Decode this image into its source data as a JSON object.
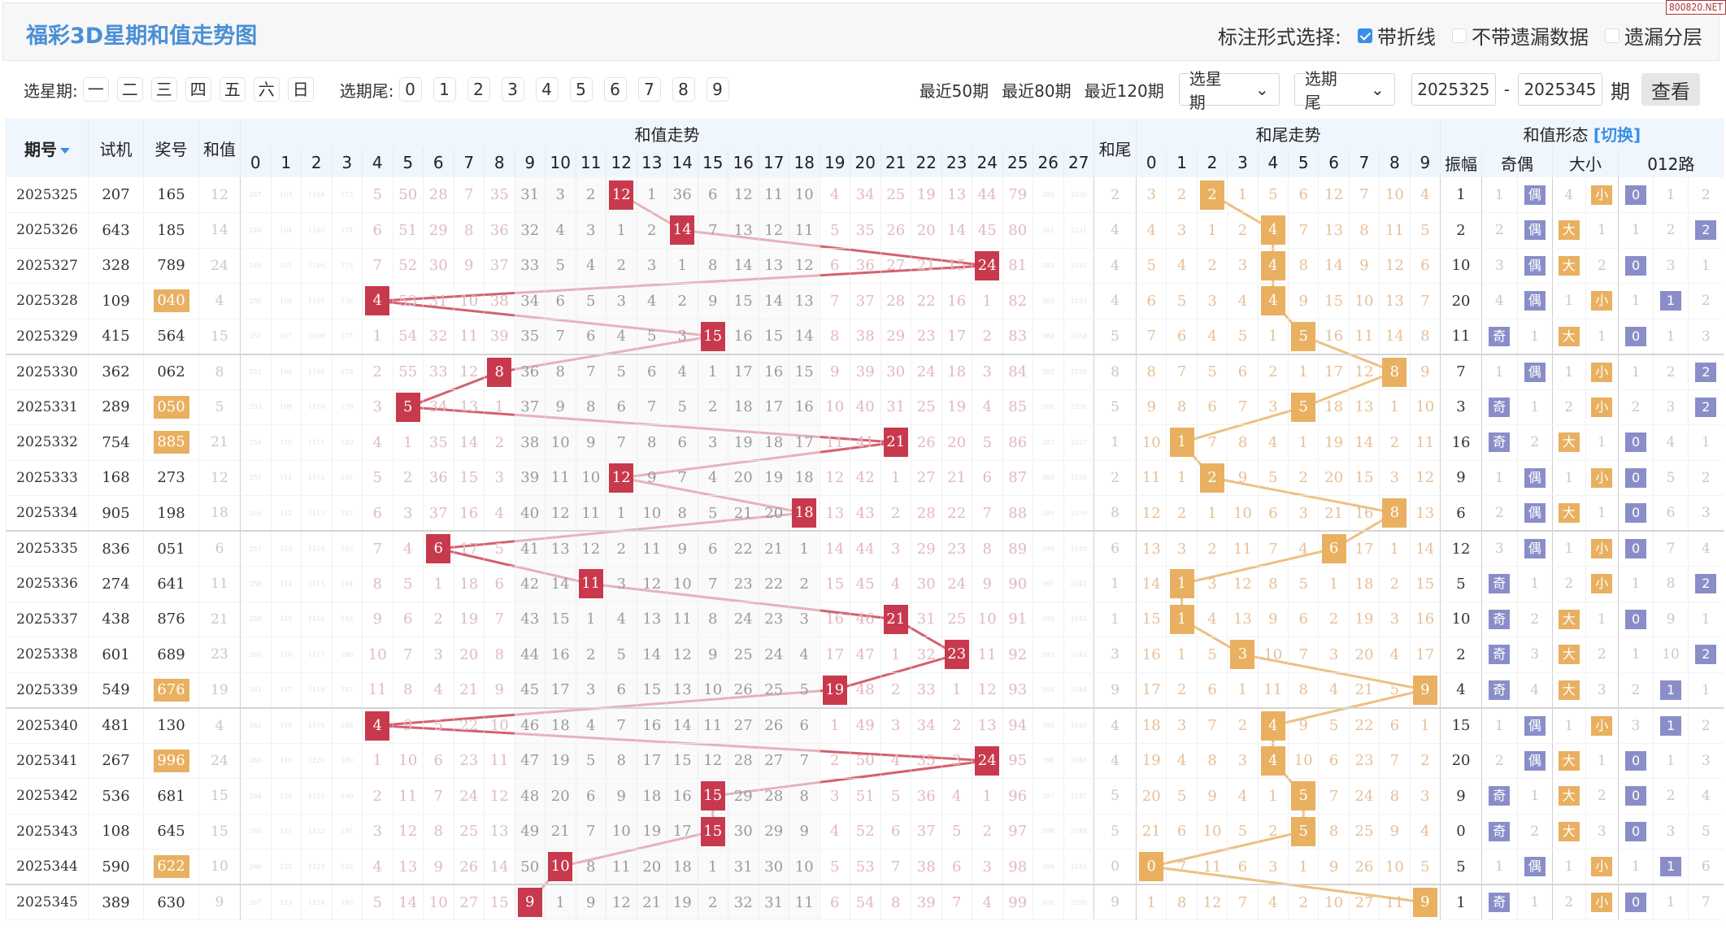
{
  "header": {
    "title": "福彩3D星期和值走势图",
    "options_label": "标注形式选择:",
    "options": [
      {
        "label": "带折线",
        "checked": true
      },
      {
        "label": "不带遗漏数据",
        "checked": false
      },
      {
        "label": "遗漏分层",
        "checked": false
      }
    ],
    "watermark": "800820.NET"
  },
  "filters": {
    "weekday_label": "选星期:",
    "weekdays": [
      "一",
      "二",
      "三",
      "四",
      "五",
      "六",
      "日"
    ],
    "tail_label": "选期尾:",
    "tails": [
      "0",
      "1",
      "2",
      "3",
      "4",
      "5",
      "6",
      "7",
      "8",
      "9"
    ],
    "recent": [
      "最近50期",
      "最近80期",
      "最近120期"
    ],
    "weekday_select": "选星期",
    "tail_select": "选期尾",
    "from": "2025325",
    "dash": "-",
    "to": "2025345",
    "unit": "期",
    "view": "查看"
  },
  "colors": {
    "sum_hit": "#c8394e",
    "tail_hit": "#e8b060",
    "form_purple": "#8a8ec8",
    "title": "#4a8fd6"
  },
  "table": {
    "headers": {
      "period": "期号",
      "test": "试机",
      "draw": "奖号",
      "sum": "和值",
      "sum_trend": "和值走势",
      "tail": "和尾",
      "tail_trend": "和尾走势",
      "form": "和值形态",
      "switch": "[切换]",
      "amplitude": "振幅",
      "odd_even": "奇偶",
      "big_small": "大小",
      "route": "012路"
    },
    "sum_numbers": [
      "0",
      "1",
      "2",
      "3",
      "4",
      "5",
      "6",
      "7",
      "8",
      "9",
      "10",
      "11",
      "12",
      "13",
      "14",
      "15",
      "16",
      "17",
      "18",
      "19",
      "20",
      "21",
      "22",
      "23",
      "24",
      "25",
      "26",
      "27"
    ],
    "tail_numbers": [
      "0",
      "1",
      "2",
      "3",
      "4",
      "5",
      "6",
      "7",
      "8",
      "9"
    ],
    "rows": [
      {
        "period": "2025325",
        "test": "207",
        "draw": "165",
        "group3": false,
        "sum": 12,
        "tail": 2,
        "amplitude": 1,
        "odd_even": [
          1,
          "偶"
        ],
        "big_small": [
          4,
          "小"
        ],
        "route": [
          "0",
          1,
          2
        ]
      },
      {
        "period": "2025326",
        "test": "643",
        "draw": "185",
        "group3": false,
        "sum": 14,
        "tail": 4,
        "amplitude": 2,
        "odd_even": [
          2,
          "偶"
        ],
        "big_small": [
          "大",
          1
        ],
        "route": [
          1,
          2,
          "2"
        ]
      },
      {
        "period": "2025327",
        "test": "328",
        "draw": "789",
        "group3": false,
        "sum": 24,
        "tail": 4,
        "amplitude": 10,
        "odd_even": [
          3,
          "偶"
        ],
        "big_small": [
          "大",
          2
        ],
        "route": [
          "0",
          3,
          1
        ]
      },
      {
        "period": "2025328",
        "test": "109",
        "draw": "040",
        "group3": true,
        "sum": 4,
        "tail": 4,
        "amplitude": 20,
        "odd_even": [
          4,
          "偶"
        ],
        "big_small": [
          1,
          "小"
        ],
        "route": [
          1,
          "1",
          2
        ]
      },
      {
        "period": "2025329",
        "test": "415",
        "draw": "564",
        "group3": false,
        "sum": 15,
        "tail": 5,
        "amplitude": 11,
        "odd_even": [
          "奇",
          1
        ],
        "big_small": [
          "大",
          1
        ],
        "route": [
          "0",
          1,
          3
        ]
      },
      {
        "period": "2025330",
        "test": "362",
        "draw": "062",
        "group3": false,
        "sum": 8,
        "tail": 8,
        "amplitude": 7,
        "odd_even": [
          1,
          "偶"
        ],
        "big_small": [
          1,
          "小"
        ],
        "route": [
          1,
          2,
          "2"
        ]
      },
      {
        "period": "2025331",
        "test": "289",
        "draw": "050",
        "group3": true,
        "sum": 5,
        "tail": 5,
        "amplitude": 3,
        "odd_even": [
          "奇",
          1
        ],
        "big_small": [
          2,
          "小"
        ],
        "route": [
          2,
          3,
          "2"
        ]
      },
      {
        "period": "2025332",
        "test": "754",
        "draw": "885",
        "group3": true,
        "sum": 21,
        "tail": 1,
        "amplitude": 16,
        "odd_even": [
          "奇",
          2
        ],
        "big_small": [
          "大",
          1
        ],
        "route": [
          "0",
          4,
          1
        ]
      },
      {
        "period": "2025333",
        "test": "168",
        "draw": "273",
        "group3": false,
        "sum": 12,
        "tail": 2,
        "amplitude": 9,
        "odd_even": [
          1,
          "偶"
        ],
        "big_small": [
          1,
          "小"
        ],
        "route": [
          "0",
          5,
          2
        ]
      },
      {
        "period": "2025334",
        "test": "905",
        "draw": "198",
        "group3": false,
        "sum": 18,
        "tail": 8,
        "amplitude": 6,
        "odd_even": [
          2,
          "偶"
        ],
        "big_small": [
          "大",
          1
        ],
        "route": [
          "0",
          6,
          3
        ]
      },
      {
        "period": "2025335",
        "test": "836",
        "draw": "051",
        "group3": false,
        "sum": 6,
        "tail": 6,
        "amplitude": 12,
        "odd_even": [
          3,
          "偶"
        ],
        "big_small": [
          1,
          "小"
        ],
        "route": [
          "0",
          7,
          4
        ]
      },
      {
        "period": "2025336",
        "test": "274",
        "draw": "641",
        "group3": false,
        "sum": 11,
        "tail": 1,
        "amplitude": 5,
        "odd_even": [
          "奇",
          1
        ],
        "big_small": [
          2,
          "小"
        ],
        "route": [
          1,
          8,
          "2"
        ]
      },
      {
        "period": "2025337",
        "test": "438",
        "draw": "876",
        "group3": false,
        "sum": 21,
        "tail": 1,
        "amplitude": 10,
        "odd_even": [
          "奇",
          2
        ],
        "big_small": [
          "大",
          1
        ],
        "route": [
          "0",
          9,
          1
        ]
      },
      {
        "period": "2025338",
        "test": "601",
        "draw": "689",
        "group3": false,
        "sum": 23,
        "tail": 3,
        "amplitude": 2,
        "odd_even": [
          "奇",
          3
        ],
        "big_small": [
          "大",
          2
        ],
        "route": [
          1,
          10,
          "2"
        ]
      },
      {
        "period": "2025339",
        "test": "549",
        "draw": "676",
        "group3": true,
        "sum": 19,
        "tail": 9,
        "amplitude": 4,
        "odd_even": [
          "奇",
          4
        ],
        "big_small": [
          "大",
          3
        ],
        "route": [
          2,
          "1",
          1
        ]
      },
      {
        "period": "2025340",
        "test": "481",
        "draw": "130",
        "group3": false,
        "sum": 4,
        "tail": 4,
        "amplitude": 15,
        "odd_even": [
          1,
          "偶"
        ],
        "big_small": [
          1,
          "小"
        ],
        "route": [
          3,
          "1",
          2
        ]
      },
      {
        "period": "2025341",
        "test": "267",
        "draw": "996",
        "group3": true,
        "sum": 24,
        "tail": 4,
        "amplitude": 20,
        "odd_even": [
          2,
          "偶"
        ],
        "big_small": [
          "大",
          1
        ],
        "route": [
          "0",
          1,
          3
        ]
      },
      {
        "period": "2025342",
        "test": "536",
        "draw": "681",
        "group3": false,
        "sum": 15,
        "tail": 5,
        "amplitude": 9,
        "odd_even": [
          "奇",
          1
        ],
        "big_small": [
          "大",
          2
        ],
        "route": [
          "0",
          2,
          4
        ]
      },
      {
        "period": "2025343",
        "test": "108",
        "draw": "645",
        "group3": false,
        "sum": 15,
        "tail": 5,
        "amplitude": 0,
        "odd_even": [
          "奇",
          2
        ],
        "big_small": [
          "大",
          3
        ],
        "route": [
          "0",
          3,
          5
        ]
      },
      {
        "period": "2025344",
        "test": "590",
        "draw": "622",
        "group3": true,
        "sum": 10,
        "tail": 0,
        "amplitude": 5,
        "odd_even": [
          1,
          "偶"
        ],
        "big_small": [
          1,
          "小"
        ],
        "route": [
          1,
          "1",
          6
        ]
      },
      {
        "period": "2025345",
        "test": "389",
        "draw": "630",
        "group3": false,
        "sum": 9,
        "tail": 9,
        "amplitude": 1,
        "odd_even": [
          "奇",
          1
        ],
        "big_small": [
          2,
          "小"
        ],
        "route": [
          "0",
          1,
          7
        ]
      }
    ],
    "sum_omission_by_number": [
      [
        247,
        248,
        249,
        250,
        251,
        252,
        253,
        254,
        255,
        256,
        257,
        258,
        259,
        260,
        261,
        262,
        263,
        264,
        265,
        266,
        267
      ],
      [
        103,
        104,
        105,
        106,
        107,
        108,
        109,
        110,
        111,
        112,
        113,
        114,
        115,
        116,
        117,
        118,
        119,
        120,
        121,
        122,
        123
      ],
      [
        1104,
        1105,
        1106,
        1107,
        1108,
        1109,
        1110,
        1111,
        1112,
        1113,
        1114,
        1115,
        1116,
        1117,
        1118,
        1119,
        1120,
        1121,
        1122,
        1123,
        1124
      ],
      [
        173,
        174,
        175,
        176,
        177,
        178,
        179,
        180,
        181,
        182,
        183,
        184,
        185,
        186,
        187,
        188,
        189,
        190,
        191,
        192,
        193
      ],
      [
        5,
        6,
        7,
        null,
        1,
        2,
        3,
        4,
        5,
        6,
        7,
        8,
        9,
        10,
        11,
        null,
        1,
        2,
        3,
        4,
        5
      ],
      [
        50,
        51,
        52,
        53,
        54,
        55,
        null,
        1,
        2,
        3,
        4,
        5,
        6,
        7,
        8,
        9,
        10,
        11,
        12,
        13,
        14
      ],
      [
        28,
        29,
        30,
        31,
        32,
        33,
        34,
        35,
        36,
        37,
        null,
        1,
        2,
        3,
        4,
        5,
        6,
        7,
        8,
        9,
        10
      ],
      [
        7,
        8,
        9,
        10,
        11,
        12,
        13,
        14,
        15,
        16,
        17,
        18,
        19,
        20,
        21,
        22,
        23,
        24,
        25,
        26,
        27
      ],
      [
        35,
        36,
        37,
        38,
        39,
        null,
        1,
        2,
        3,
        4,
        5,
        6,
        7,
        8,
        9,
        10,
        11,
        12,
        13,
        14,
        15
      ],
      [
        31,
        32,
        33,
        34,
        35,
        36,
        37,
        38,
        39,
        40,
        41,
        42,
        43,
        44,
        45,
        46,
        47,
        48,
        49,
        50,
        null
      ],
      [
        3,
        4,
        5,
        6,
        7,
        8,
        9,
        10,
        11,
        12,
        13,
        14,
        15,
        16,
        17,
        18,
        19,
        20,
        21,
        null,
        1
      ],
      [
        2,
        3,
        4,
        5,
        6,
        7,
        8,
        9,
        10,
        11,
        12,
        null,
        1,
        2,
        3,
        4,
        5,
        6,
        7,
        8,
        9
      ],
      [
        null,
        1,
        2,
        3,
        4,
        5,
        6,
        7,
        null,
        1,
        2,
        3,
        4,
        5,
        6,
        7,
        8,
        9,
        10,
        11,
        12
      ],
      [
        1,
        2,
        3,
        4,
        5,
        6,
        7,
        8,
        9,
        10,
        11,
        12,
        13,
        14,
        15,
        16,
        17,
        18,
        19,
        20,
        21
      ],
      [
        36,
        null,
        1,
        2,
        3,
        4,
        5,
        6,
        7,
        8,
        9,
        10,
        11,
        12,
        13,
        14,
        15,
        16,
        17,
        18,
        19
      ],
      [
        6,
        7,
        8,
        9,
        null,
        1,
        2,
        3,
        4,
        5,
        6,
        7,
        8,
        9,
        10,
        11,
        12,
        null,
        null,
        1,
        2
      ],
      [
        12,
        13,
        14,
        15,
        16,
        17,
        18,
        19,
        20,
        21,
        22,
        23,
        24,
        25,
        26,
        27,
        28,
        29,
        30,
        31,
        32
      ],
      [
        11,
        12,
        13,
        14,
        15,
        16,
        17,
        18,
        19,
        20,
        21,
        22,
        23,
        24,
        25,
        26,
        27,
        28,
        29,
        30,
        31
      ],
      [
        10,
        11,
        12,
        13,
        14,
        15,
        16,
        17,
        18,
        null,
        1,
        2,
        3,
        4,
        5,
        6,
        7,
        8,
        9,
        10,
        11
      ],
      [
        4,
        5,
        6,
        7,
        8,
        9,
        10,
        11,
        12,
        13,
        14,
        15,
        16,
        17,
        null,
        1,
        2,
        3,
        4,
        5,
        6
      ],
      [
        34,
        35,
        36,
        37,
        38,
        39,
        40,
        41,
        42,
        43,
        44,
        45,
        46,
        47,
        48,
        49,
        50,
        51,
        52,
        53,
        54
      ],
      [
        25,
        26,
        27,
        28,
        29,
        30,
        31,
        null,
        1,
        2,
        3,
        4,
        null,
        1,
        2,
        3,
        4,
        5,
        6,
        7,
        8
      ],
      [
        19,
        20,
        21,
        22,
        23,
        24,
        25,
        26,
        27,
        28,
        29,
        30,
        31,
        32,
        33,
        34,
        35,
        36,
        37,
        38,
        39
      ],
      [
        13,
        14,
        15,
        16,
        17,
        18,
        19,
        20,
        21,
        22,
        23,
        24,
        25,
        null,
        1,
        2,
        3,
        4,
        5,
        6,
        7
      ],
      [
        44,
        45,
        null,
        1,
        2,
        3,
        4,
        5,
        6,
        7,
        8,
        9,
        10,
        11,
        12,
        13,
        null,
        1,
        2,
        3,
        4
      ],
      [
        79,
        80,
        81,
        82,
        83,
        84,
        85,
        86,
        87,
        88,
        89,
        90,
        91,
        92,
        93,
        94,
        95,
        96,
        97,
        98,
        99
      ],
      [
        380,
        381,
        382,
        383,
        384,
        385,
        386,
        387,
        388,
        389,
        390,
        391,
        392,
        393,
        394,
        395,
        396,
        397,
        398,
        399,
        400
      ],
      [
        2130,
        2131,
        2132,
        2133,
        2134,
        2135,
        2136,
        2137,
        2138,
        2139,
        2140,
        2141,
        2142,
        2143,
        2144,
        2145,
        2146,
        2147,
        2148,
        2149,
        2150
      ]
    ],
    "tail_omission_by_number": [
      [
        3,
        4,
        5,
        6,
        7,
        8,
        9,
        10,
        11,
        12,
        13,
        14,
        15,
        16,
        17,
        18,
        19,
        20,
        21,
        null,
        1
      ],
      [
        2,
        3,
        4,
        5,
        6,
        7,
        8,
        null,
        1,
        2,
        3,
        null,
        null,
        1,
        2,
        3,
        4,
        5,
        6,
        7,
        8
      ],
      [
        null,
        1,
        2,
        3,
        4,
        5,
        6,
        7,
        null,
        1,
        2,
        3,
        4,
        5,
        6,
        7,
        8,
        9,
        10,
        11,
        12
      ],
      [
        1,
        2,
        3,
        4,
        5,
        6,
        7,
        8,
        9,
        10,
        11,
        12,
        13,
        null,
        1,
        2,
        3,
        4,
        5,
        6,
        7
      ],
      [
        5,
        null,
        null,
        null,
        1,
        2,
        3,
        4,
        5,
        6,
        7,
        8,
        9,
        10,
        11,
        null,
        null,
        1,
        2,
        3,
        4
      ],
      [
        6,
        7,
        8,
        9,
        null,
        1,
        null,
        1,
        2,
        3,
        4,
        5,
        6,
        7,
        8,
        9,
        10,
        null,
        null,
        1,
        2
      ],
      [
        12,
        13,
        14,
        15,
        16,
        17,
        18,
        19,
        20,
        21,
        null,
        1,
        2,
        3,
        4,
        5,
        6,
        7,
        8,
        9,
        10
      ],
      [
        7,
        8,
        9,
        10,
        11,
        12,
        13,
        14,
        15,
        16,
        17,
        18,
        19,
        20,
        21,
        22,
        23,
        24,
        25,
        26,
        27
      ],
      [
        10,
        11,
        12,
        13,
        14,
        null,
        1,
        2,
        3,
        null,
        1,
        2,
        3,
        4,
        5,
        6,
        7,
        8,
        9,
        10,
        11
      ],
      [
        4,
        5,
        6,
        7,
        8,
        9,
        10,
        11,
        12,
        13,
        14,
        15,
        16,
        17,
        null,
        1,
        2,
        3,
        4,
        5,
        null
      ]
    ]
  }
}
